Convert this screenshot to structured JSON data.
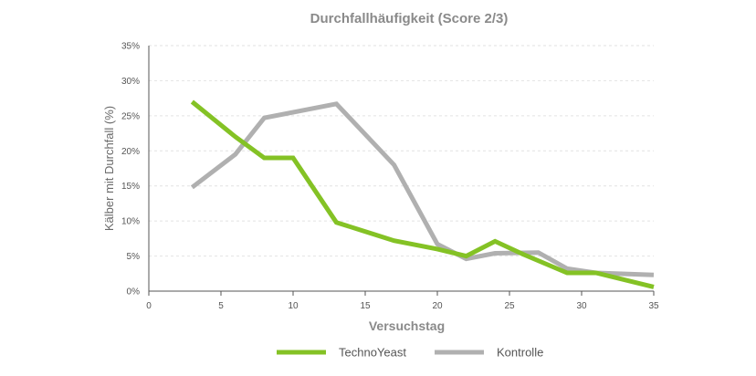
{
  "chart_data": {
    "type": "line",
    "title": "Durchfallhäufigkeit (Score 2/3)",
    "xlabel": "Versuchstag",
    "ylabel": "Kälber mit Durchfall (%)",
    "xlim": [
      0,
      35
    ],
    "ylim": [
      0,
      35
    ],
    "xticks": [
      0,
      5,
      10,
      15,
      20,
      25,
      30,
      35
    ],
    "yticks": [
      0,
      5,
      10,
      15,
      20,
      25,
      30,
      35
    ],
    "ytick_labels": [
      "0%",
      "5%",
      "10%",
      "15%",
      "20%",
      "25%",
      "30%",
      "35%"
    ],
    "grid": "horizontal-dashed",
    "legend_position": "bottom",
    "series": [
      {
        "name": "TechnoYeast",
        "color": "#84c225",
        "x": [
          3,
          6,
          8,
          10,
          13,
          17,
          20,
          22,
          24,
          26,
          29,
          31,
          35
        ],
        "y": [
          27,
          22,
          19,
          19,
          9.8,
          7.2,
          6,
          5,
          7.1,
          5.2,
          2.6,
          2.6,
          0.6
        ]
      },
      {
        "name": "Kontrolle",
        "color": "#b0b0b0",
        "x": [
          3,
          6,
          8,
          13,
          17,
          20,
          22,
          24,
          27,
          29,
          31,
          35
        ],
        "y": [
          14.8,
          19.5,
          24.7,
          26.7,
          18,
          6.7,
          4.6,
          5.4,
          5.5,
          3.2,
          2.6,
          2.3
        ]
      }
    ]
  }
}
